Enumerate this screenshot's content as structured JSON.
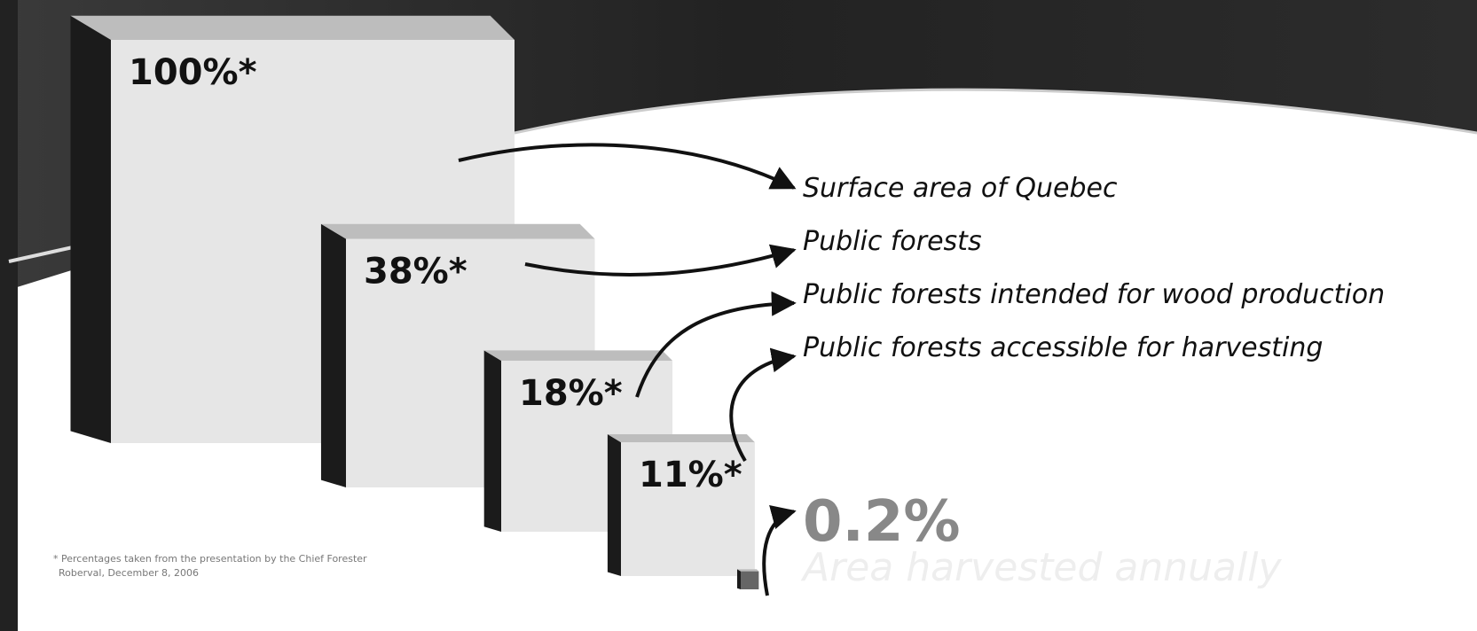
{
  "chart_data": {
    "type": "box3d",
    "categories": [
      "Surface area of Quebec",
      "Public forests",
      "Public forests intended for wood production",
      "Public forests accessible for harvesting",
      "Area harvested annually"
    ],
    "values": [
      100,
      38,
      18,
      11,
      0.2
    ],
    "value_labels": [
      "100%*",
      "38%*",
      "18%*",
      "11%*",
      "0.2%"
    ],
    "footnote": [
      "* Percentages taken from the presentation by the Chief Forester",
      "Roberval, December 8, 2006"
    ]
  }
}
